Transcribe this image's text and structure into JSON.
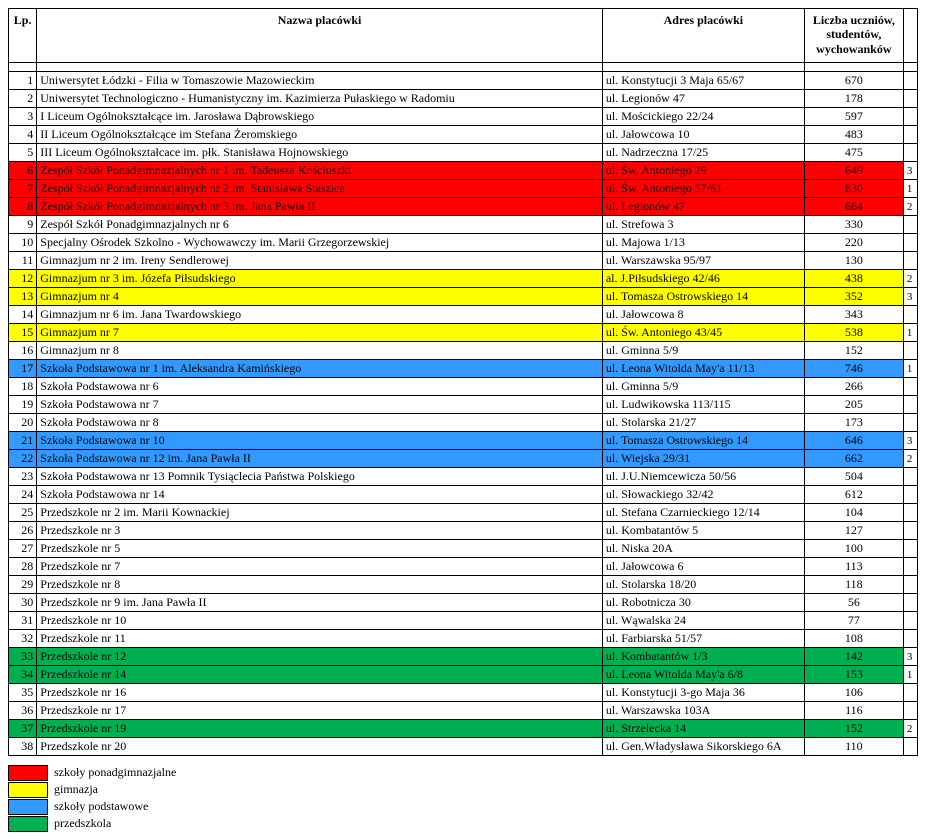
{
  "headers": {
    "lp": "Lp.",
    "name": "Nazwa placówki",
    "addr": "Adres placówki",
    "count": "Liczba uczniów, studentów, wychowanków"
  },
  "colors": {
    "red": "#ff0000",
    "yellow": "#ffff00",
    "blue": "#3399ff",
    "green": "#00b050",
    "white": "#ffffff"
  },
  "legend": [
    {
      "color": "red",
      "label": "szkoły ponadgimnazjalne"
    },
    {
      "color": "yellow",
      "label": "gimnazja"
    },
    {
      "color": "blue",
      "label": "szkoły podstawowe"
    },
    {
      "color": "green",
      "label": "przedszkola"
    }
  ],
  "rows": [
    {
      "lp": 1,
      "name": "Uniwersytet Łódzki - Filia w Tomaszowie Mazowieckim",
      "addr": "ul. Konstytucji 3 Maja 65/67",
      "count": 670,
      "bg": "white",
      "extra": ""
    },
    {
      "lp": 2,
      "name": "Uniwersytet Technologiczno - Humanistyczny im. Kazimierza Pułaskiego w Radomiu",
      "addr": "ul. Legionów 47",
      "count": 178,
      "bg": "white",
      "extra": ""
    },
    {
      "lp": 3,
      "name": "I Liceum Ogólnokształcące im. Jarosława Dąbrowskiego",
      "addr": "ul. Mościckiego 22/24",
      "count": 597,
      "bg": "white",
      "extra": ""
    },
    {
      "lp": 4,
      "name": "II Liceum Ogólnokształcące im Stefana Żeromskiego",
      "addr": "ul. Jałowcowa 10",
      "count": 483,
      "bg": "white",
      "extra": ""
    },
    {
      "lp": 5,
      "name": "III Liceum Ogólnokształcace im. płk. Stanisława Hojnowskiego",
      "addr": "ul. Nadrzeczna 17/25",
      "count": 475,
      "bg": "white",
      "extra": ""
    },
    {
      "lp": 6,
      "name": "Zespół Szkół Ponadgimnazjalnych nr 1 im. Tadeusza Kościuszki",
      "addr": "ul. Św. Antoniego 29",
      "count": 649,
      "bg": "red",
      "extra": "3"
    },
    {
      "lp": 7,
      "name": "Zespół Szkół Ponadgimnazjalnych nr 2 im. Stanisława Staszica",
      "addr": "ul. Św. Antoniego 57/61",
      "count": 830,
      "bg": "red",
      "extra": "1"
    },
    {
      "lp": 8,
      "name": "Zespół Szkół Ponadgimnazjalnych nr 3 im. Jana Pawła II",
      "addr": "ul. Legionów 47",
      "count": 684,
      "bg": "red",
      "extra": "2"
    },
    {
      "lp": 9,
      "name": "Zespół Szkół Ponadgimnazjalnych nr 6",
      "addr": "ul. Strefowa 3",
      "count": 330,
      "bg": "white",
      "extra": ""
    },
    {
      "lp": 10,
      "name": "Specjalny Ośrodek Szkolno - Wychowawczy im. Marii Grzegorzewskiej",
      "addr": "ul. Majowa 1/13",
      "count": 220,
      "bg": "white",
      "extra": ""
    },
    {
      "lp": 11,
      "name": "Gimnazjum nr 2 im. Ireny Sendlerowej",
      "addr": "ul. Warszawska 95/97",
      "count": 130,
      "bg": "white",
      "extra": ""
    },
    {
      "lp": 12,
      "name": "Gimnazjum nr 3 im. Józefa Piłsudskiego",
      "addr": "al. J.Piłsudskiego 42/46",
      "count": 438,
      "bg": "yellow",
      "extra": "2"
    },
    {
      "lp": 13,
      "name": "Gimnazjum nr 4",
      "addr": "ul. Tomasza Ostrowskiego 14",
      "count": 352,
      "bg": "yellow",
      "extra": "3"
    },
    {
      "lp": 14,
      "name": "Gimnazjum nr 6 im. Jana Twardowskiego",
      "addr": "ul. Jałowcowa 8",
      "count": 343,
      "bg": "white",
      "extra": ""
    },
    {
      "lp": 15,
      "name": "Gimnazjum nr 7",
      "addr": "ul. Św. Antoniego 43/45",
      "count": 538,
      "bg": "yellow",
      "extra": "1"
    },
    {
      "lp": 16,
      "name": "Gimnazjum nr 8",
      "addr": "ul. Gminna 5/9",
      "count": 152,
      "bg": "white",
      "extra": ""
    },
    {
      "lp": 17,
      "name": "Szkoła Podstawowa nr 1 im. Aleksandra Kamińskiego",
      "addr": "ul. Leona Witolda May'a 11/13",
      "count": 746,
      "bg": "blue",
      "extra": "1"
    },
    {
      "lp": 18,
      "name": "Szkoła Podstawowa nr 6",
      "addr": "ul. Gminna 5/9",
      "count": 266,
      "bg": "white",
      "extra": ""
    },
    {
      "lp": 19,
      "name": "Szkoła Podstawowa nr 7",
      "addr": "ul. Ludwikowska 113/115",
      "count": 205,
      "bg": "white",
      "extra": ""
    },
    {
      "lp": 20,
      "name": "Szkoła Podstawowa nr 8",
      "addr": "ul. Stolarska 21/27",
      "count": 173,
      "bg": "white",
      "extra": ""
    },
    {
      "lp": 21,
      "name": "Szkoła Podstawowa nr 10",
      "addr": "ul. Tomasza Ostrowskiego 14",
      "count": 646,
      "bg": "blue",
      "extra": "3"
    },
    {
      "lp": 22,
      "name": "Szkoła Podstawowa nr 12 im. Jana Pawła II",
      "addr": "ul. Wiejska 29/31",
      "count": 662,
      "bg": "blue",
      "extra": "2"
    },
    {
      "lp": 23,
      "name": "Szkoła Podstawowa nr 13 Pomnik Tysiąclecia Państwa Polskiego",
      "addr": "ul. J.U.Niemcewicza 50/56",
      "count": 504,
      "bg": "white",
      "extra": ""
    },
    {
      "lp": 24,
      "name": "Szkoła Podstawowa nr 14",
      "addr": "ul. Słowackiego 32/42",
      "count": 612,
      "bg": "white",
      "extra": ""
    },
    {
      "lp": 25,
      "name": "Przedszkole nr 2 im. Marii Kownackiej",
      "addr": "ul. Stefana Czarnieckiego 12/14",
      "count": 104,
      "bg": "white",
      "extra": ""
    },
    {
      "lp": 26,
      "name": "Przedszkole nr 3",
      "addr": "ul. Kombatantów 5",
      "count": 127,
      "bg": "white",
      "extra": ""
    },
    {
      "lp": 27,
      "name": "Przedszkole nr 5",
      "addr": "ul. Niska 20A",
      "count": 100,
      "bg": "white",
      "extra": ""
    },
    {
      "lp": 28,
      "name": "Przedszkole nr 7",
      "addr": "ul. Jałowcowa 6",
      "count": 113,
      "bg": "white",
      "extra": ""
    },
    {
      "lp": 29,
      "name": "Przedszkole nr 8",
      "addr": "ul. Stolarska 18/20",
      "count": 118,
      "bg": "white",
      "extra": ""
    },
    {
      "lp": 30,
      "name": "Przedszkole nr 9 im. Jana Pawła II",
      "addr": "ul. Robotnicza 30",
      "count": 56,
      "bg": "white",
      "extra": ""
    },
    {
      "lp": 31,
      "name": "Przedszkole nr 10",
      "addr": "ul. Wąwalska 24",
      "count": 77,
      "bg": "white",
      "extra": ""
    },
    {
      "lp": 32,
      "name": "Przedszkole nr 11",
      "addr": "ul. Farbiarska 51/57",
      "count": 108,
      "bg": "white",
      "extra": ""
    },
    {
      "lp": 33,
      "name": "Przedszkole nr 12",
      "addr": "ul. Kombatantów 1/3",
      "count": 142,
      "bg": "green",
      "extra": "3"
    },
    {
      "lp": 34,
      "name": "Przedszkole nr 14",
      "addr": "ul. Leona Witolda May'a 6/8",
      "count": 153,
      "bg": "green",
      "extra": "1"
    },
    {
      "lp": 35,
      "name": "Przedszkole nr 16",
      "addr": "ul. Konstytucji 3-go Maja 36",
      "count": 106,
      "bg": "white",
      "extra": ""
    },
    {
      "lp": 36,
      "name": "Przedszkole nr 17",
      "addr": "ul. Warszawska 103A",
      "count": 116,
      "bg": "white",
      "extra": ""
    },
    {
      "lp": 37,
      "name": "Przedszkole nr 19",
      "addr": "ul. Strzelecka 14",
      "count": 152,
      "bg": "green",
      "extra": "2"
    },
    {
      "lp": 38,
      "name": "Przedszkole nr 20",
      "addr": "ul. Gen.Władysława Sikorskiego 6A",
      "count": 110,
      "bg": "white",
      "extra": ""
    }
  ]
}
